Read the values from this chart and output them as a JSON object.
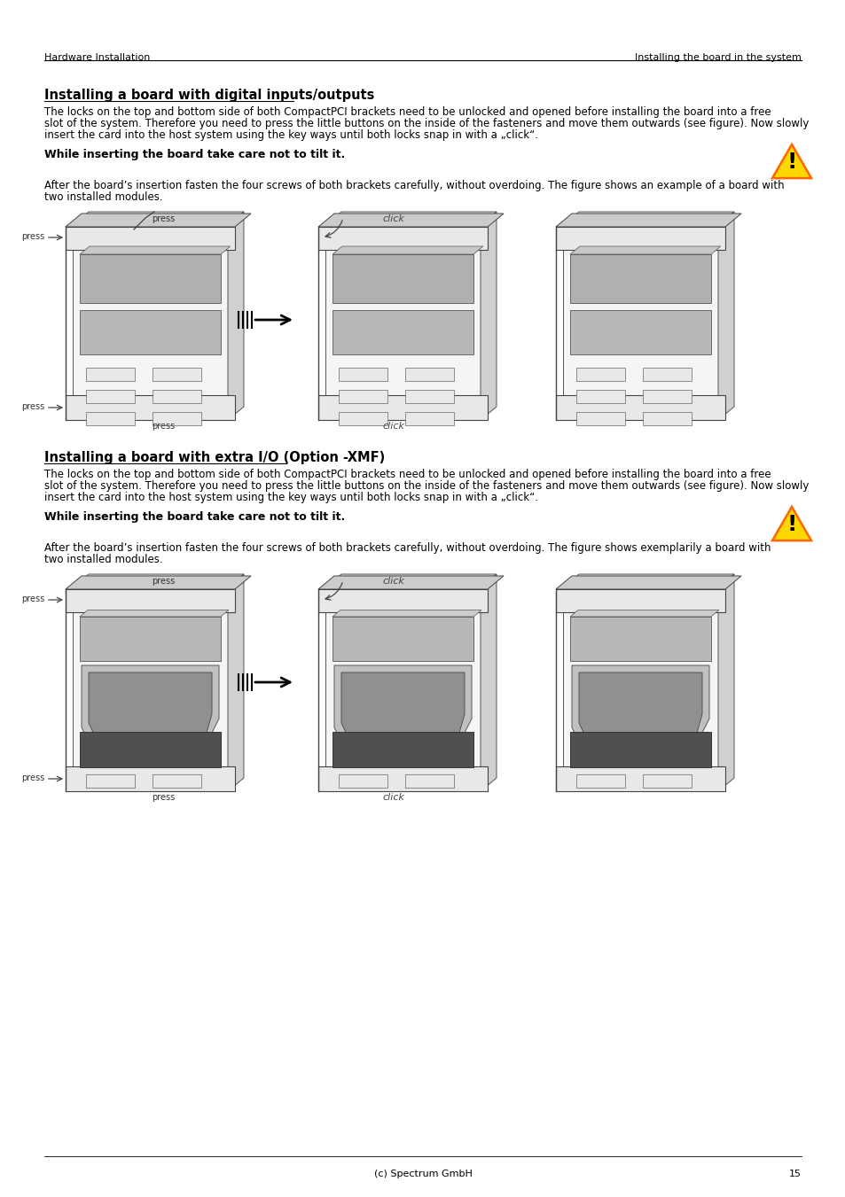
{
  "page_title_left": "Hardware Installation",
  "page_title_right": "Installing the board in the system",
  "page_number": "15",
  "footer_center": "(c) Spectrum GmbH",
  "section1_title": "Installing a board with digital inputs/outputs",
  "section1_body1": "The locks on the top and bottom side of both CompactPCI brackets need to be unlocked and opened before installing the board into a free",
  "section1_body2": "slot of the system. Therefore you need to press the little buttons on the inside of the fasteners and move them outwards (see figure). Now slowly",
  "section1_body3": "insert the card into the host system using the key ways until both locks snap in with a „click“.",
  "section1_warning": "While inserting the board take care not to tilt it.",
  "section1_after1": "After the board’s insertion fasten the four screws of both brackets carefully, without overdoing. The figure shows an example of a board with",
  "section1_after2": "two installed modules.",
  "section2_title": "Installing a board with extra I/O (Option -XMF)",
  "section2_body1": "The locks on the top and bottom side of both CompactPCI brackets need to be unlocked and opened before installing the board into a free",
  "section2_body2": "slot of the system. Therefore you need to press the little buttons on the inside of the fasteners and move them outwards (see figure). Now slowly",
  "section2_body3": "insert the card into the host system using the key ways until both locks snap in with a „click“.",
  "section2_warning": "While inserting the board take care not to tilt it.",
  "section2_after1": "After the board’s insertion fasten the four screws of both brackets carefully, without overdoing. The figure shows exemplarily a board with",
  "section2_after2": "two installed modules.",
  "bg_color": "#ffffff",
  "text_color": "#000000",
  "title_fontsize": 10.5,
  "body_fontsize": 8.5,
  "header_fontsize": 8,
  "warning_fontsize": 9
}
